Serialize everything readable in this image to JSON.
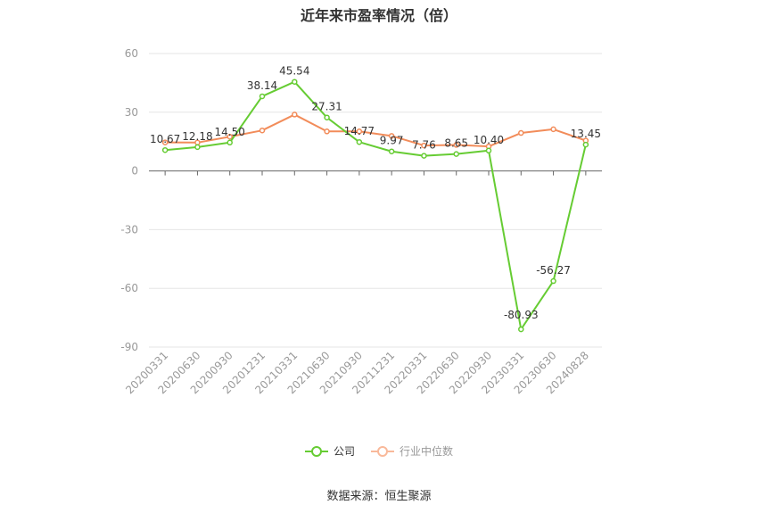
{
  "title": "近年来市盈率情况（倍）",
  "source": "数据来源：恒生聚源",
  "colors": {
    "company": "#66cc33",
    "industry": "#f28c5a"
  },
  "chart_data": {
    "type": "line",
    "title": "近年来市盈率情况（倍）",
    "x": [
      "20200331",
      "20200630",
      "20200930",
      "20201231",
      "20210331",
      "20210630",
      "20210930",
      "20211231",
      "20220331",
      "20220630",
      "20220930",
      "20230331",
      "20230630",
      "20240828"
    ],
    "ylim": [
      -90,
      60
    ],
    "yticks": [
      60,
      30,
      0,
      -30,
      -60,
      -90
    ],
    "grid": true,
    "legend_position": "bottom",
    "series": [
      {
        "name": "公司",
        "values": [
          10.67,
          12.18,
          14.5,
          38.14,
          45.54,
          27.31,
          14.77,
          9.97,
          7.76,
          8.65,
          10.4,
          -80.93,
          -56.27,
          13.45
        ],
        "labels": [
          "10.67",
          "12.18",
          "14.50",
          "38.14",
          "45.54",
          "27.31",
          "14.77",
          "9.97",
          "7.76",
          "8.65",
          "10.40",
          "-80.93",
          "-56.27",
          "13.45"
        ]
      },
      {
        "name": "行业中位数",
        "values": [
          14.6,
          14.5,
          17.5,
          20.7,
          28.8,
          20.2,
          20.2,
          17.9,
          13.0,
          13.3,
          12.5,
          19.4,
          21.3,
          15.5
        ]
      }
    ]
  }
}
